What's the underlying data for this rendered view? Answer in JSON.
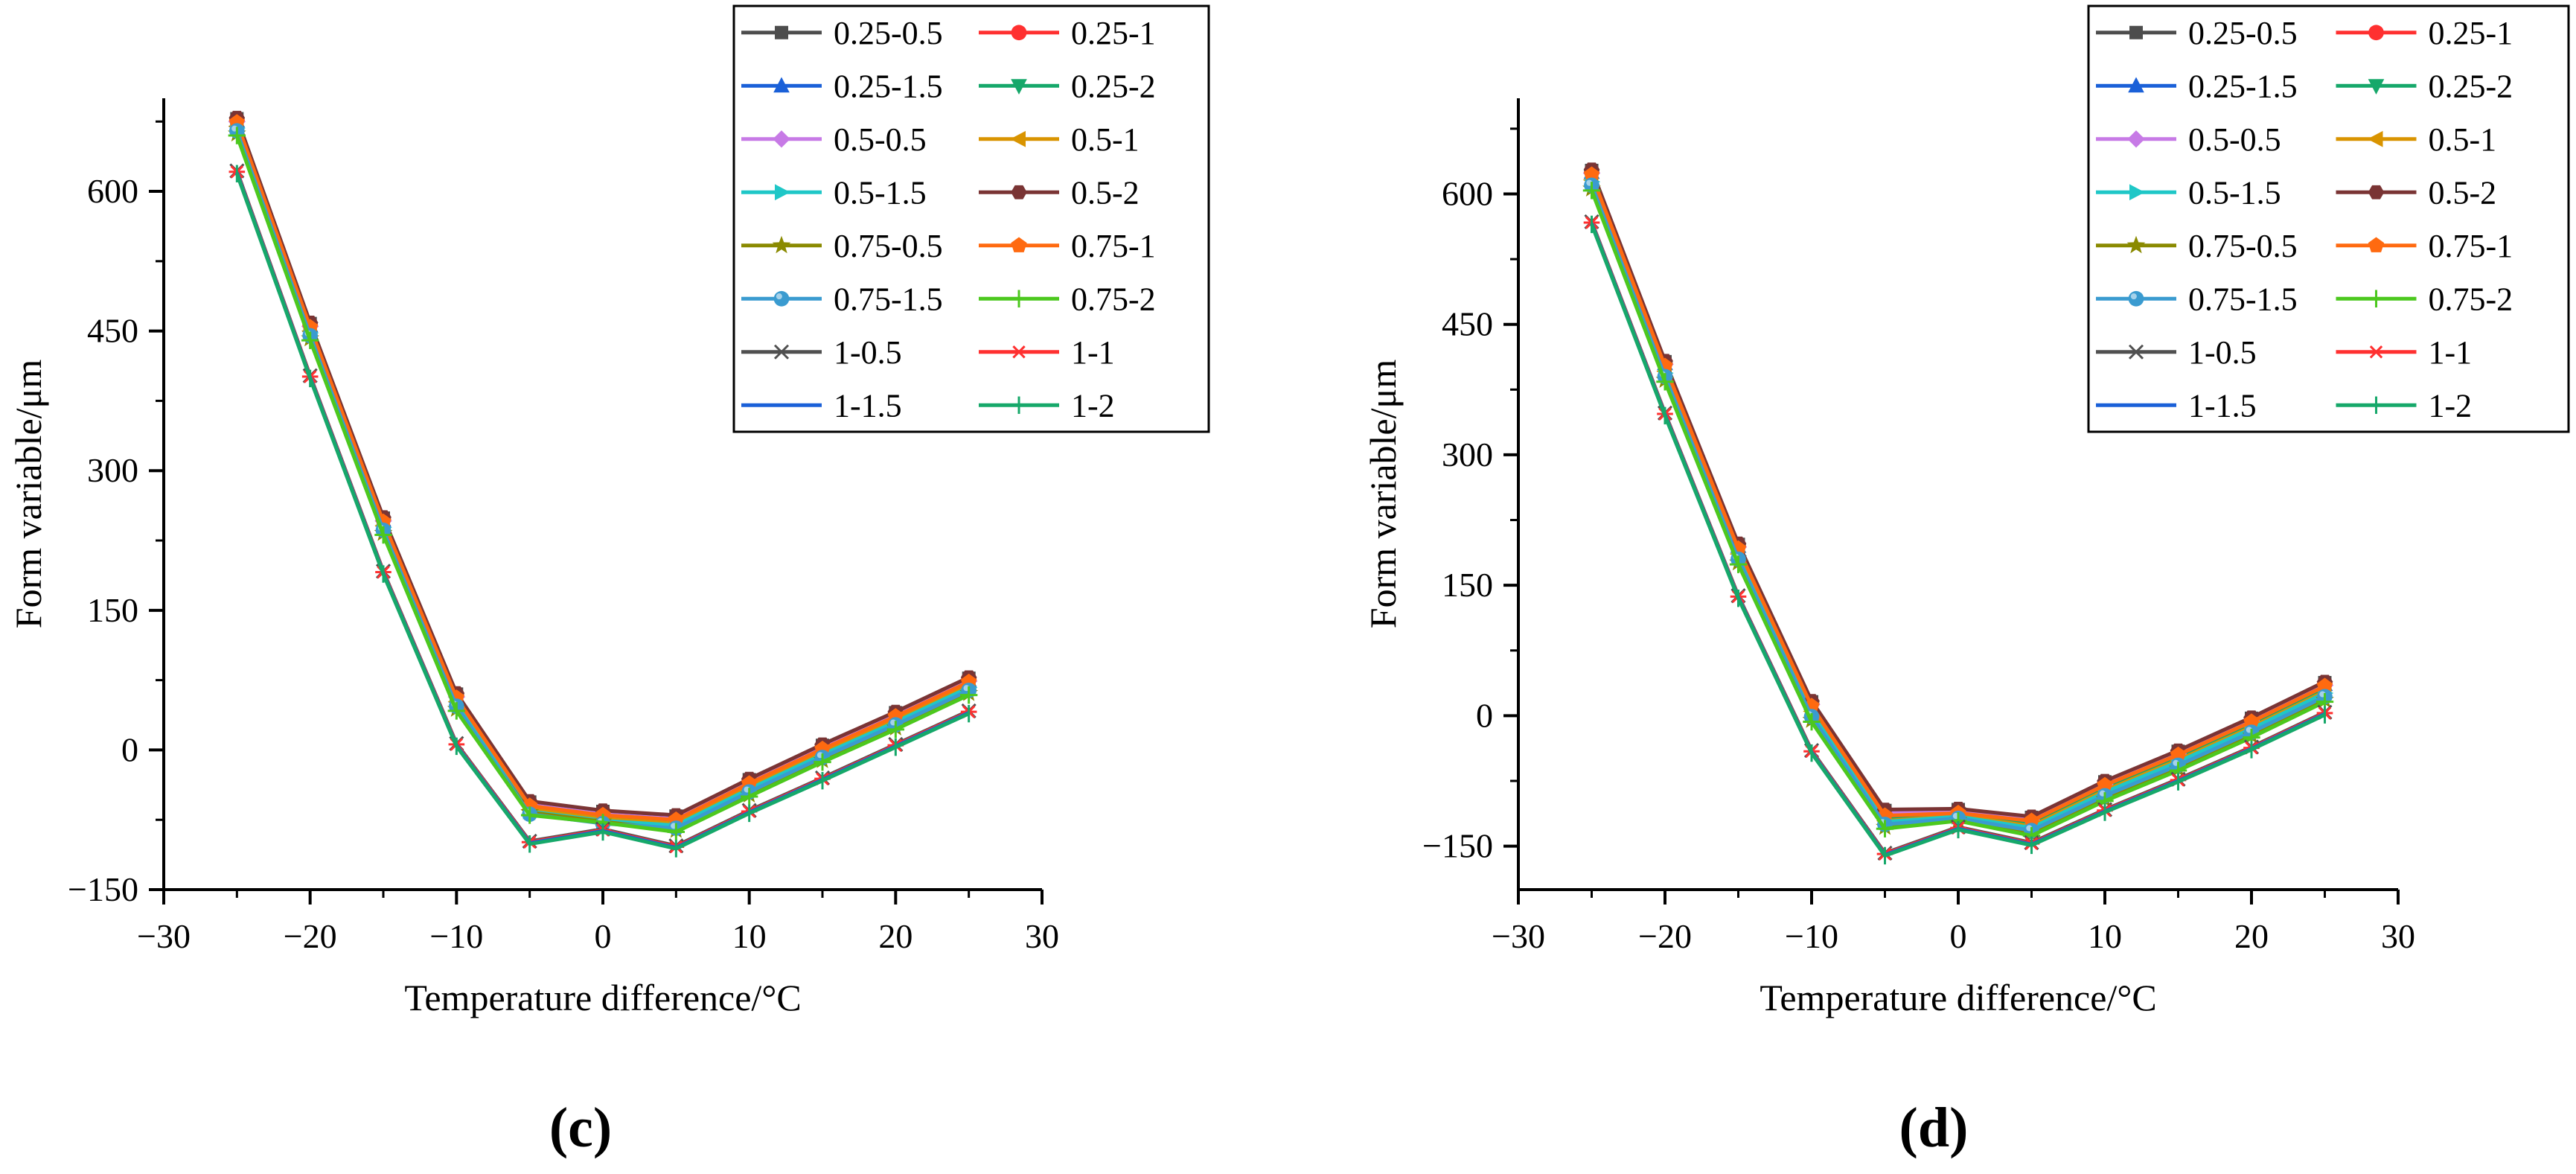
{
  "chart_data": [
    {
      "type": "line",
      "panel": "c",
      "panel_label": "(c)",
      "xlabel": "Temperature difference/°C",
      "ylabel": "Form variable/μm",
      "xlim": [
        -30,
        30
      ],
      "ylim": [
        -150,
        700
      ],
      "xticks": [
        -30,
        -20,
        -10,
        0,
        10,
        20,
        30
      ],
      "yticks": [
        -150,
        0,
        150,
        300,
        450,
        600
      ],
      "xtick_labels": [
        "−30",
        "−20",
        "−10",
        "0",
        "10",
        "20",
        "30"
      ],
      "ytick_labels": [
        "−150",
        "0",
        "150",
        "300",
        "450",
        "600"
      ],
      "x": [
        -25,
        -20,
        -15,
        -10,
        -5,
        0,
        5,
        10,
        15,
        20,
        25
      ],
      "series": [
        {
          "name": "0.25-0.5",
          "values": [
            678,
            458,
            249,
            60,
            -56,
            -66,
            -71,
            -32,
            5,
            40,
            77
          ]
        },
        {
          "name": "0.25-1",
          "values": [
            677,
            457,
            248,
            59,
            -57,
            -67,
            -72,
            -33,
            4,
            39,
            76
          ]
        },
        {
          "name": "0.25-1.5",
          "values": [
            676,
            456,
            247,
            58,
            -58,
            -68,
            -73,
            -34,
            3,
            38,
            75
          ]
        },
        {
          "name": "0.25-2",
          "values": [
            672,
            452,
            243,
            54,
            -62,
            -72,
            -77,
            -38,
            -1,
            34,
            71
          ]
        },
        {
          "name": "0.5-0.5",
          "values": [
            675,
            455,
            246,
            57,
            -59,
            -69,
            -74,
            -35,
            2,
            37,
            74
          ]
        },
        {
          "name": "0.5-1",
          "values": [
            670,
            450,
            241,
            52,
            -64,
            -74,
            -79,
            -40,
            -3,
            32,
            69
          ]
        },
        {
          "name": "0.5-1.5",
          "values": [
            668,
            448,
            239,
            50,
            -66,
            -76,
            -81,
            -42,
            -5,
            30,
            67
          ]
        },
        {
          "name": "0.5-2",
          "values": [
            679,
            459,
            250,
            61,
            -55,
            -65,
            -70,
            -31,
            6,
            41,
            78
          ]
        },
        {
          "name": "0.75-0.5",
          "values": [
            662,
            442,
            233,
            44,
            -67,
            -77,
            -86,
            -48,
            -11,
            24,
            61
          ]
        },
        {
          "name": "0.75-1",
          "values": [
            674,
            454,
            245,
            56,
            -60,
            -70,
            -75,
            -36,
            1,
            36,
            73
          ]
        },
        {
          "name": "0.75-1.5",
          "values": [
            665,
            445,
            236,
            47,
            -69,
            -79,
            -84,
            -45,
            -8,
            27,
            64
          ]
        },
        {
          "name": "0.75-2",
          "values": [
            660,
            440,
            231,
            42,
            -70,
            -78,
            -88,
            -50,
            -13,
            22,
            59
          ]
        },
        {
          "name": "1-0.5",
          "values": [
            622,
            402,
            192,
            7,
            -98,
            -85,
            -103,
            -65,
            -30,
            6,
            42
          ]
        },
        {
          "name": "1-1",
          "values": [
            621,
            401,
            191,
            6,
            -99,
            -86,
            -104,
            -66,
            -31,
            5,
            41
          ]
        },
        {
          "name": "1-1.5",
          "values": [
            620,
            400,
            190,
            5,
            -100,
            -87,
            -105,
            -67,
            -32,
            4,
            40
          ]
        },
        {
          "name": "1-2",
          "values": [
            619,
            399,
            189,
            4,
            -101,
            -88,
            -106,
            -68,
            -33,
            3,
            39
          ]
        }
      ],
      "legend": "top-right, 2 columns"
    },
    {
      "type": "line",
      "panel": "d",
      "panel_label": "(d)",
      "xlabel": "Temperature difference/°C",
      "ylabel": "Form variable/μm",
      "xlim": [
        -30,
        30
      ],
      "ylim": [
        -200,
        710
      ],
      "xticks": [
        -30,
        -20,
        -10,
        0,
        10,
        20,
        30
      ],
      "yticks": [
        -150,
        0,
        150,
        300,
        450,
        600
      ],
      "xtick_labels": [
        "−30",
        "−20",
        "−10",
        "0",
        "10",
        "20",
        "30"
      ],
      "ytick_labels": [
        "−150",
        "0",
        "150",
        "300",
        "450",
        "600"
      ],
      "x": [
        -25,
        -20,
        -15,
        -10,
        -5,
        0,
        5,
        10,
        15,
        20,
        25
      ],
      "series": [
        {
          "name": "0.25-0.5",
          "values": [
            627,
            407,
            197,
            16,
            -109,
            -108,
            -117,
            -76,
            -41,
            -3,
            38
          ]
        },
        {
          "name": "0.25-1",
          "values": [
            626,
            406,
            196,
            15,
            -110,
            -109,
            -118,
            -77,
            -42,
            -4,
            37
          ]
        },
        {
          "name": "0.25-1.5",
          "values": [
            625,
            405,
            195,
            14,
            -111,
            -110,
            -119,
            -78,
            -43,
            -5,
            36
          ]
        },
        {
          "name": "0.25-2",
          "values": [
            620,
            400,
            190,
            9,
            -118,
            -113,
            -123,
            -82,
            -47,
            -9,
            32
          ]
        },
        {
          "name": "0.5-0.5",
          "values": [
            624,
            404,
            194,
            13,
            -112,
            -111,
            -120,
            -79,
            -44,
            -6,
            35
          ]
        },
        {
          "name": "0.5-1",
          "values": [
            616,
            396,
            186,
            5,
            -121,
            -115,
            -127,
            -86,
            -51,
            -13,
            28
          ]
        },
        {
          "name": "0.5-1.5",
          "values": [
            614,
            394,
            184,
            3,
            -122,
            -116,
            -129,
            -88,
            -53,
            -15,
            26
          ]
        },
        {
          "name": "0.5-2",
          "values": [
            628,
            408,
            198,
            17,
            -108,
            -107,
            -116,
            -75,
            -40,
            -2,
            39
          ]
        },
        {
          "name": "0.75-0.5",
          "values": [
            606,
            386,
            176,
            -5,
            -128,
            -120,
            -136,
            -96,
            -61,
            -23,
            18
          ]
        },
        {
          "name": "0.75-1",
          "values": [
            622,
            402,
            192,
            11,
            -115,
            -112,
            -121,
            -80,
            -45,
            -7,
            34
          ]
        },
        {
          "name": "0.75-1.5",
          "values": [
            610,
            390,
            180,
            -1,
            -125,
            -118,
            -132,
            -92,
            -57,
            -19,
            22
          ]
        },
        {
          "name": "0.75-2",
          "values": [
            604,
            384,
            174,
            -7,
            -130,
            -121,
            -138,
            -98,
            -63,
            -25,
            16
          ]
        },
        {
          "name": "1-0.5",
          "values": [
            568,
            348,
            138,
            -40,
            -158,
            -128,
            -146,
            -108,
            -73,
            -36,
            4
          ]
        },
        {
          "name": "1-1",
          "values": [
            567,
            347,
            137,
            -41,
            -159,
            -129,
            -147,
            -109,
            -74,
            -37,
            3
          ]
        },
        {
          "name": "1-1.5",
          "values": [
            566,
            346,
            136,
            -42,
            -160,
            -130,
            -148,
            -110,
            -75,
            -38,
            2
          ]
        },
        {
          "name": "1-2",
          "values": [
            565,
            345,
            135,
            -43,
            -161,
            -131,
            -149,
            -111,
            -76,
            -39,
            1
          ]
        }
      ],
      "legend": "top-right, 2 columns"
    }
  ],
  "styles": [
    {
      "color": "#4d4d4d",
      "marker": "square"
    },
    {
      "color": "#ff3030",
      "marker": "circle"
    },
    {
      "color": "#1a60d8",
      "marker": "triangle-up"
    },
    {
      "color": "#16a86a",
      "marker": "triangle-down"
    },
    {
      "color": "#c77ae6",
      "marker": "diamond"
    },
    {
      "color": "#d99400",
      "marker": "triangle-left"
    },
    {
      "color": "#1fc7c7",
      "marker": "triangle-right"
    },
    {
      "color": "#7a3434",
      "marker": "hexagon"
    },
    {
      "color": "#8a8a00",
      "marker": "star"
    },
    {
      "color": "#ff6a10",
      "marker": "pentagon"
    },
    {
      "color": "#3a9bd0",
      "marker": "sphere"
    },
    {
      "color": "#4cc81e",
      "marker": "plus"
    },
    {
      "color": "#505050",
      "marker": "cross"
    },
    {
      "color": "#ff3030",
      "marker": "asterisk"
    },
    {
      "color": "#1a60d8",
      "marker": "none"
    },
    {
      "color": "#16a86a",
      "marker": "bar"
    }
  ]
}
